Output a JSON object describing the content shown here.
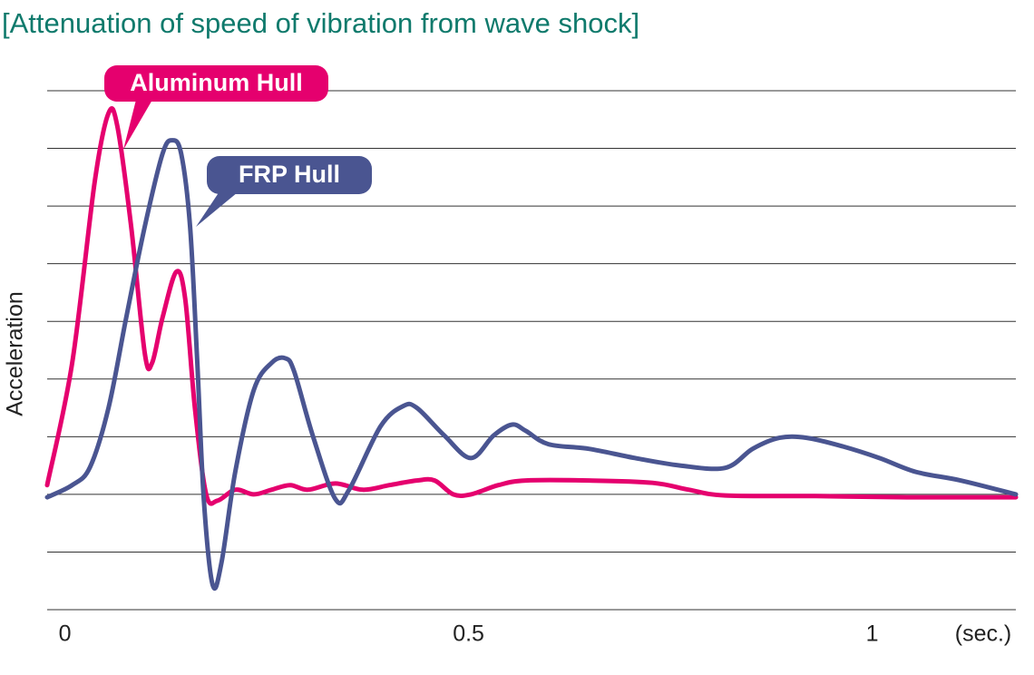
{
  "chart_data": {
    "type": "line",
    "title": "[Attenuation of speed of vibration from wave shock]",
    "y_label": "Acceleration",
    "x_label": "(sec.)",
    "xlim": [
      -0.022,
      1.178
    ],
    "xticks": [
      0,
      0.5,
      1
    ],
    "ylim": [
      -2,
      7
    ],
    "yticks": [
      -2,
      -1,
      0,
      1,
      2,
      3,
      4,
      5,
      6,
      7
    ],
    "grid": true,
    "series": [
      {
        "name": "Aluminum Hull",
        "color": "#e5006e",
        "x": [
          -0.022,
          0.009,
          0.037,
          0.054,
          0.065,
          0.082,
          0.099,
          0.108,
          0.121,
          0.138,
          0.149,
          0.161,
          0.175,
          0.189,
          0.211,
          0.234,
          0.256,
          0.279,
          0.301,
          0.335,
          0.369,
          0.402,
          0.436,
          0.458,
          0.481,
          0.503,
          0.537,
          0.571,
          0.649,
          0.728,
          0.773,
          0.818,
          0.93,
          1.043,
          1.178
        ],
        "values": [
          0.16,
          2.28,
          5.43,
          6.61,
          6.38,
          4.65,
          2.44,
          2.28,
          3.07,
          3.86,
          3.39,
          1.5,
          0,
          -0.11,
          0.08,
          0,
          0.08,
          0.16,
          0.08,
          0.19,
          0.08,
          0.16,
          0.24,
          0.24,
          0,
          0,
          0.16,
          0.24,
          0.24,
          0.2,
          0.08,
          -0.02,
          -0.03,
          -0.05,
          -0.05
        ]
      },
      {
        "name": "FRP Hull",
        "color": "#4a5591",
        "x": [
          -0.022,
          0.009,
          0.031,
          0.054,
          0.076,
          0.099,
          0.121,
          0.133,
          0.144,
          0.155,
          0.164,
          0.172,
          0.183,
          0.194,
          0.211,
          0.234,
          0.256,
          0.273,
          0.284,
          0.307,
          0.335,
          0.352,
          0.391,
          0.419,
          0.436,
          0.47,
          0.503,
          0.531,
          0.554,
          0.571,
          0.599,
          0.649,
          0.706,
          0.762,
          0.818,
          0.852,
          0.885,
          0.919,
          0.964,
          1.009,
          1.054,
          1.11,
          1.178
        ],
        "values": [
          -0.05,
          0.16,
          0.47,
          1.5,
          3.07,
          4.65,
          5.91,
          6.14,
          5.91,
          4.65,
          2.28,
          -0.08,
          -1.57,
          -1.18,
          0.39,
          1.81,
          2.28,
          2.36,
          2.13,
          1.02,
          -0.08,
          0.08,
          1.18,
          1.53,
          1.5,
          1.02,
          0.63,
          1.02,
          1.21,
          1.1,
          0.87,
          0.79,
          0.63,
          0.5,
          0.46,
          0.79,
          0.98,
          0.98,
          0.83,
          0.63,
          0.39,
          0.24,
          0
        ]
      }
    ]
  }
}
